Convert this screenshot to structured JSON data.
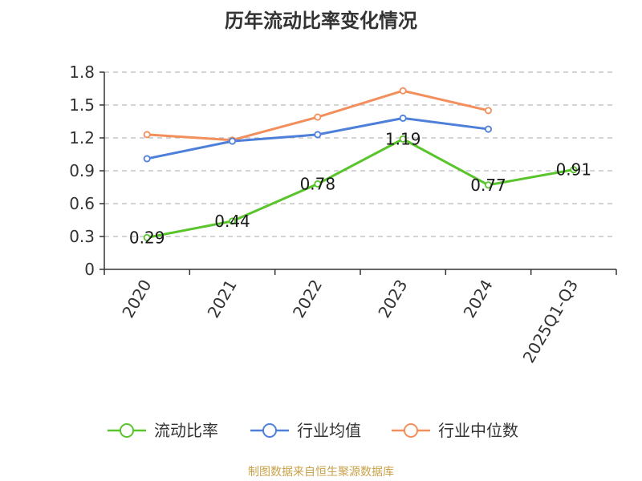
{
  "chart_data": {
    "type": "line",
    "title": "历年流动比率变化情况",
    "categories": [
      "2020",
      "2021",
      "2022",
      "2023",
      "2024",
      "2025Q1-Q3"
    ],
    "series": [
      {
        "name": "流动比率",
        "color": "#5ac42c",
        "values": [
          0.29,
          0.44,
          0.78,
          1.19,
          0.77,
          0.91
        ],
        "show_labels": true
      },
      {
        "name": "行业均值",
        "color": "#4e7fd9",
        "values": [
          1.01,
          1.17,
          1.23,
          1.38,
          1.28,
          null
        ],
        "show_labels": false
      },
      {
        "name": "行业中位数",
        "color": "#f28f5c",
        "values": [
          1.23,
          1.18,
          1.39,
          1.63,
          1.45,
          null
        ],
        "show_labels": false
      }
    ],
    "data_labels": [
      "0.29",
      "0.44",
      "0.78",
      "1.19",
      "0.77",
      "0.91"
    ],
    "yticks": [
      "0",
      "0.3",
      "0.6",
      "0.9",
      "1.2",
      "1.5",
      "1.8"
    ],
    "ylim": [
      0,
      1.8
    ],
    "grid": "horizontal dashed",
    "legend_position": "bottom"
  },
  "source_text": "制图数据来自恒生聚源数据库"
}
